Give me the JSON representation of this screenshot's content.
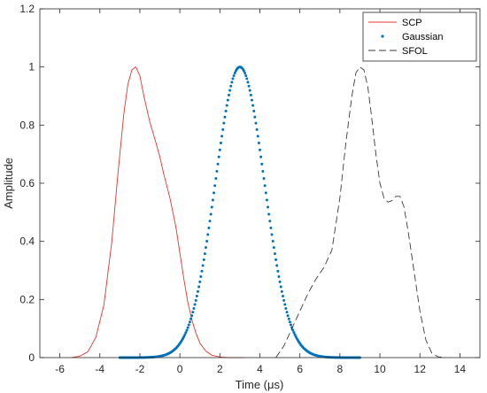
{
  "chart_data": {
    "type": "line",
    "xlabel": "Time (μs)",
    "ylabel": "Amplitude",
    "xlim": [
      -7,
      15
    ],
    "ylim": [
      0,
      1.2
    ],
    "xticks": [
      -6,
      -4,
      -2,
      0,
      2,
      4,
      6,
      8,
      10,
      12,
      14
    ],
    "yticks": [
      0,
      0.2,
      0.4,
      0.6,
      0.8,
      1,
      1.2
    ],
    "ytick_labels": [
      "0",
      "0.2",
      "0.4",
      "0.6",
      "0.8",
      "1",
      "1.2"
    ],
    "grid": false,
    "legend_position": "top-right",
    "series": [
      {
        "name": "SCP",
        "style": "solid",
        "color": "#e8342c",
        "x": [
          -5.4,
          -5.0,
          -4.6,
          -4.2,
          -3.8,
          -3.4,
          -3.1,
          -2.8,
          -2.6,
          -2.4,
          -2.2,
          -2.0,
          -1.8,
          -1.5,
          -1.2,
          -1.0,
          -0.8,
          -0.5,
          -0.2,
          0.0,
          0.2,
          0.4,
          0.6,
          0.8,
          1.0,
          1.3,
          1.6,
          2.0,
          2.4,
          2.8,
          3.2
        ],
        "y": [
          0.0,
          0.005,
          0.02,
          0.07,
          0.18,
          0.4,
          0.63,
          0.84,
          0.94,
          0.99,
          1.0,
          0.97,
          0.9,
          0.81,
          0.74,
          0.69,
          0.63,
          0.55,
          0.45,
          0.36,
          0.27,
          0.19,
          0.13,
          0.085,
          0.05,
          0.022,
          0.008,
          0.002,
          0.0,
          0.0,
          0.0
        ]
      },
      {
        "name": "Gaussian",
        "style": "dotted",
        "color": "#0072bd",
        "mean": 3.0,
        "sigma": 1.22,
        "x_range": [
          -3,
          9
        ],
        "points": 241
      },
      {
        "name": "SFOL",
        "style": "dashed",
        "color": "#3a3a3a",
        "x": [
          4.8,
          5.2,
          5.6,
          6.0,
          6.4,
          6.8,
          7.2,
          7.6,
          8.0,
          8.3,
          8.6,
          8.8,
          9.0,
          9.2,
          9.4,
          9.6,
          9.8,
          10.0,
          10.2,
          10.4,
          10.6,
          10.8,
          11.0,
          11.2,
          11.4,
          11.7,
          12.0,
          12.3,
          12.6,
          12.9,
          13.2
        ],
        "y": [
          0.0,
          0.04,
          0.1,
          0.16,
          0.22,
          0.27,
          0.31,
          0.37,
          0.55,
          0.74,
          0.9,
          0.98,
          1.0,
          0.99,
          0.93,
          0.82,
          0.7,
          0.6,
          0.55,
          0.535,
          0.54,
          0.555,
          0.555,
          0.52,
          0.44,
          0.3,
          0.16,
          0.06,
          0.015,
          0.003,
          0.0
        ]
      }
    ]
  }
}
